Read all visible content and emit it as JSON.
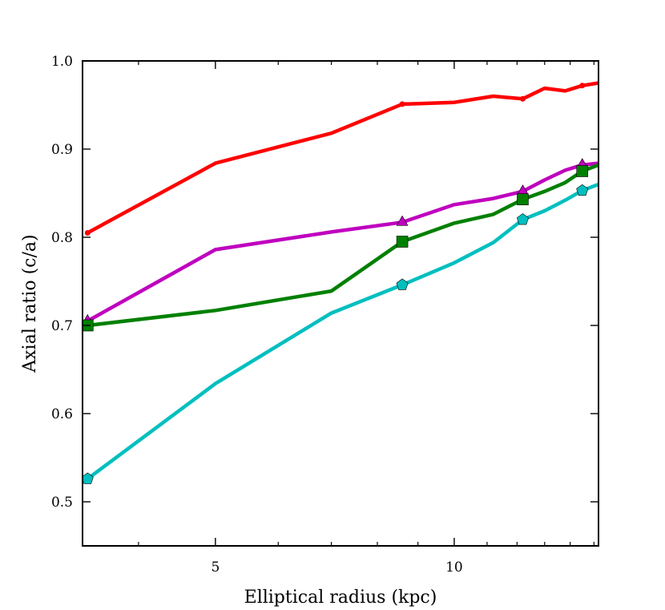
{
  "chart_data": {
    "type": "line",
    "title": "",
    "xlabel": "Elliptical radius (kpc)",
    "ylabel": "Axial ratio (c/a)",
    "xlim": [
      3.4,
      15.2
    ],
    "ylim": [
      0.45,
      1.0
    ],
    "xscale": "log",
    "grid": false,
    "xticks": [
      {
        "value": 5,
        "label": "5"
      },
      {
        "value": 10,
        "label": "10"
      }
    ],
    "xminor_ticks": [
      3.4,
      4,
      6,
      7,
      8,
      9,
      11,
      12,
      13,
      14,
      15
    ],
    "yticks": [
      {
        "value": 0.5,
        "label": "0.5"
      },
      {
        "value": 0.6,
        "label": "0.6"
      },
      {
        "value": 0.7,
        "label": "0.7"
      },
      {
        "value": 0.8,
        "label": "0.8"
      },
      {
        "value": 0.9,
        "label": "0.9"
      },
      {
        "value": 1.0,
        "label": "1.0"
      }
    ],
    "series": [
      {
        "name": "red",
        "color": "#ff0000",
        "marker": "dot",
        "x": [
          3.45,
          5.0,
          7.0,
          8.6,
          10.0,
          11.2,
          12.2,
          13.0,
          13.8,
          14.5,
          15.2
        ],
        "y": [
          0.805,
          0.884,
          0.918,
          0.951,
          0.953,
          0.96,
          0.957,
          0.969,
          0.966,
          0.972,
          0.975
        ],
        "marker_x": [
          3.45,
          8.6,
          12.2,
          14.5
        ],
        "marker_y": [
          0.805,
          0.951,
          0.957,
          0.972
        ]
      },
      {
        "name": "magenta",
        "color": "#bf00bf",
        "marker": "triangle",
        "x": [
          3.45,
          5.0,
          7.0,
          8.6,
          10.0,
          11.2,
          12.2,
          13.0,
          13.8,
          14.5,
          15.2
        ],
        "y": [
          0.705,
          0.786,
          0.806,
          0.817,
          0.837,
          0.844,
          0.852,
          0.865,
          0.876,
          0.882,
          0.884
        ],
        "marker_x": [
          3.45,
          8.6,
          12.2,
          14.5
        ],
        "marker_y": [
          0.705,
          0.817,
          0.852,
          0.882
        ]
      },
      {
        "name": "green",
        "color": "#008000",
        "marker": "square",
        "x": [
          3.45,
          5.0,
          7.0,
          8.6,
          10.0,
          11.2,
          12.2,
          13.0,
          13.8,
          14.5,
          15.2
        ],
        "y": [
          0.7,
          0.717,
          0.739,
          0.795,
          0.816,
          0.826,
          0.843,
          0.852,
          0.862,
          0.875,
          0.882
        ],
        "marker_x": [
          3.45,
          8.6,
          12.2,
          14.5
        ],
        "marker_y": [
          0.7,
          0.795,
          0.843,
          0.875
        ]
      },
      {
        "name": "cyan",
        "color": "#00bfbf",
        "marker": "pentagon",
        "x": [
          3.45,
          5.0,
          7.0,
          8.6,
          10.0,
          11.2,
          12.2,
          13.0,
          13.8,
          14.5,
          15.2
        ],
        "y": [
          0.526,
          0.634,
          0.714,
          0.746,
          0.771,
          0.794,
          0.82,
          0.83,
          0.842,
          0.853,
          0.86
        ],
        "marker_x": [
          3.45,
          8.6,
          12.2,
          14.5
        ],
        "marker_y": [
          0.526,
          0.746,
          0.82,
          0.853
        ]
      }
    ]
  }
}
